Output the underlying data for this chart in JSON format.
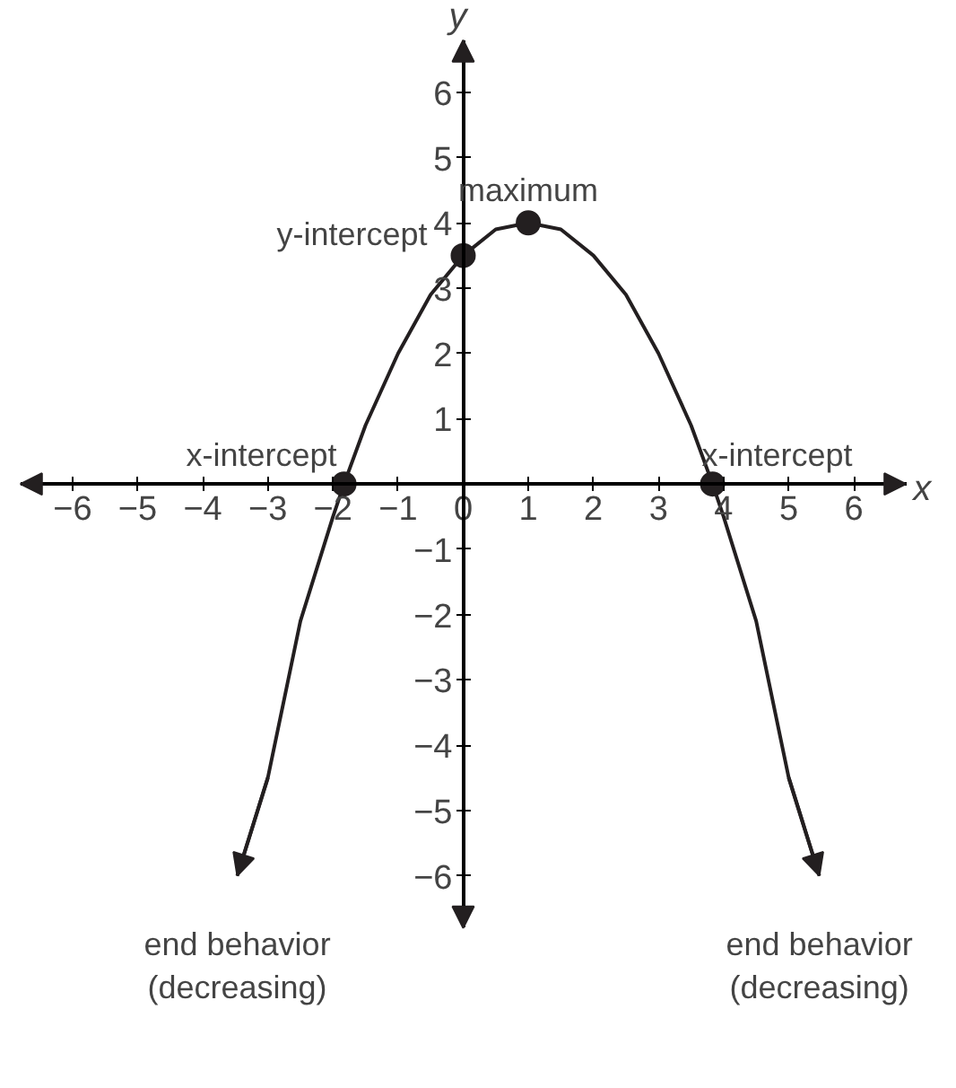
{
  "chart_data": {
    "type": "line",
    "xlabel": "x",
    "ylabel": "y",
    "xlim": [
      -6.8,
      6.8
    ],
    "ylim": [
      -6.8,
      6.8
    ],
    "xticks": [
      {
        "value": -6,
        "label": "−6"
      },
      {
        "value": -5,
        "label": "−5"
      },
      {
        "value": -4,
        "label": "−4"
      },
      {
        "value": -3,
        "label": "−3"
      },
      {
        "value": -2,
        "label": "−2"
      },
      {
        "value": -1,
        "label": "−1"
      },
      {
        "value": 0,
        "label": "0"
      },
      1,
      2,
      3,
      4,
      5,
      6
    ],
    "yticks": [
      {
        "value": -6,
        "label": "−6"
      },
      {
        "value": -5,
        "label": "−5"
      },
      {
        "value": -4,
        "label": "−4"
      },
      {
        "value": -3,
        "label": "−3"
      },
      {
        "value": -2,
        "label": "−2"
      },
      {
        "value": -1,
        "label": "−1"
      },
      1,
      2,
      3,
      4,
      5,
      6
    ],
    "grid": false,
    "series": [
      {
        "color": "#231f20",
        "marker": "none",
        "line_style": "solid",
        "x": [
          -3.47,
          -3,
          -2.5,
          -2,
          -1.83,
          -1.5,
          -1,
          -0.5,
          0,
          0.5,
          1,
          1.5,
          2,
          2.5,
          3,
          3.5,
          3.83,
          4,
          4.5,
          5,
          5.47
        ],
        "values": [
          -6,
          -4.5,
          -2.1,
          -0.5,
          0,
          0.9,
          2,
          2.9,
          3.5,
          3.9,
          4,
          3.9,
          3.5,
          2.9,
          2,
          0.9,
          0,
          -0.5,
          -2.1,
          -4.5,
          -6
        ]
      },
      {
        "type": "scatter",
        "color": "#231f20",
        "marker": "circle",
        "x": [
          -1.83,
          0,
          1,
          3.83
        ],
        "values": [
          0,
          3.5,
          4,
          0
        ]
      }
    ],
    "annotations": [
      {
        "text": "maximum",
        "x": 1,
        "y": 4
      },
      {
        "text": "y-intercept",
        "x": 0,
        "y": 3.5
      },
      {
        "text": "x-intercept",
        "x": -1.83,
        "y": 0
      },
      {
        "text": "x-intercept",
        "x": 3.83,
        "y": 0
      },
      {
        "text": "end behavior\n(decreasing)",
        "x": -3.47,
        "y": -6
      },
      {
        "text": "end behavior\n(decreasing)",
        "x": 5.47,
        "y": -6
      }
    ]
  }
}
